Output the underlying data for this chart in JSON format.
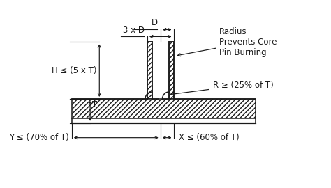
{
  "bg_color": "#ffffff",
  "line_color": "#1a1a1a",
  "figsize": [
    4.74,
    2.7
  ],
  "dpi": 100,
  "labels": {
    "D": "D",
    "3xD": "3 x D",
    "H": "H ≤ (5 x T)",
    "R": "R ≥ (25% of T)",
    "T": "T",
    "Y": "Y ≤ (70% of T)",
    "X": "X ≤ (60% of T)",
    "radius_note": "Radius\nPrevents Core\nPin Burning"
  },
  "fontsize": 8.5
}
